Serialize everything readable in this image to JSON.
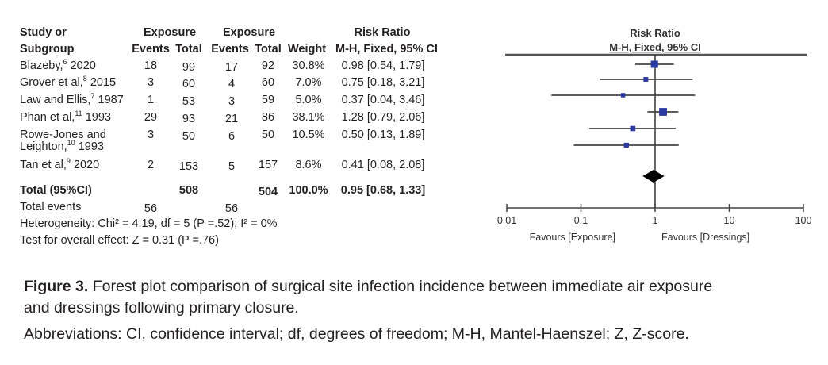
{
  "headers": {
    "study_l1": "Study or",
    "study_l2": "Subgroup",
    "group1": "Exposure",
    "group2": "Exposure",
    "events": "Events",
    "total": "Total",
    "weight": "Weight",
    "rr_l1": "Risk Ratio",
    "rr_l2": "M-H, Fixed, 95% CI"
  },
  "studies": [
    {
      "name": "Blazeby,",
      "ref": "6",
      "year": "2020",
      "e1": "18",
      "t1": "99",
      "e2": "17",
      "t2": "92",
      "weight": "30.8%",
      "ci": "0.98 [0.54, 1.79]"
    },
    {
      "name": "Grover et al,",
      "ref": "8",
      "year": "2015",
      "e1": "3",
      "t1": "60",
      "e2": "4",
      "t2": "60",
      "weight": "7.0%",
      "ci": "0.75 [0.18, 3.21]"
    },
    {
      "name": "Law and Ellis,",
      "ref": "7",
      "year": "1987",
      "e1": "1",
      "t1": "53",
      "e2": "3",
      "t2": "59",
      "weight": "5.0%",
      "ci": "0.37 [0.04, 3.46]"
    },
    {
      "name": "Phan et al,",
      "ref": "11",
      "year": "1993",
      "e1": "29",
      "t1": "93",
      "e2": "21",
      "t2": "86",
      "weight": "38.1%",
      "ci": "1.28 [0.79, 2.06]"
    },
    {
      "name": "Rowe-Jones and Leighton,",
      "ref": "10",
      "year": "1993",
      "e1": "3",
      "t1": "50",
      "e2": "6",
      "t2": "50",
      "weight": "10.5%",
      "ci": "0.50 [0.13, 1.89]"
    },
    {
      "name": "Tan et al,",
      "ref": "9",
      "year": "2020",
      "e1": "2",
      "t1": "153",
      "e2": "5",
      "t2": "157",
      "weight": "8.6%",
      "ci": "0.41 [0.08, 2.08]"
    }
  ],
  "total": {
    "label": "Total (95%CI)",
    "t1": "508",
    "t2": "504",
    "weight": "100.0%",
    "ci": "0.95 [0.68, 1.33]"
  },
  "total_events": {
    "label": "Total events",
    "e1": "56",
    "e2": "56"
  },
  "heterogeneity": "Heterogeneity: Chi² = 4.19, df = 5 (P =.52); I² = 0%",
  "overall_effect": "Test for overall effect: Z = 0.31 (P =.76)",
  "caption": {
    "figure_label": "Figure 3.",
    "line1": "Forest plot comparison of surgical site infection incidence between immediate air exposure",
    "line2": "and dressings following primary closure.",
    "abbreviations": "Abbreviations: CI, confidence interval; df, degrees of freedom; M-H, Mantel-Haenszel; Z, Z-score."
  },
  "chart_data": {
    "type": "forest",
    "title": "Risk Ratio",
    "subtitle": "M-H, Fixed, 95% CI",
    "xscale": "log",
    "xlim": [
      0.01,
      100
    ],
    "xticks": [
      "0.01",
      "0.1",
      "1",
      "10",
      "100"
    ],
    "xlabel_left": "Favours [Exposure]",
    "xlabel_right": "Favours [Dressings]",
    "points": [
      {
        "rr": 0.98,
        "lo": 0.54,
        "hi": 1.79,
        "weight": 30.8
      },
      {
        "rr": 0.75,
        "lo": 0.18,
        "hi": 3.21,
        "weight": 7.0
      },
      {
        "rr": 0.37,
        "lo": 0.04,
        "hi": 3.46,
        "weight": 5.0
      },
      {
        "rr": 1.28,
        "lo": 0.79,
        "hi": 2.06,
        "weight": 38.1
      },
      {
        "rr": 0.5,
        "lo": 0.13,
        "hi": 1.89,
        "weight": 10.5
      },
      {
        "rr": 0.41,
        "lo": 0.08,
        "hi": 2.08,
        "weight": 8.6
      }
    ],
    "pooled": {
      "rr": 0.95,
      "lo": 0.68,
      "hi": 1.33
    },
    "marker_color": "#2b3aa0"
  }
}
